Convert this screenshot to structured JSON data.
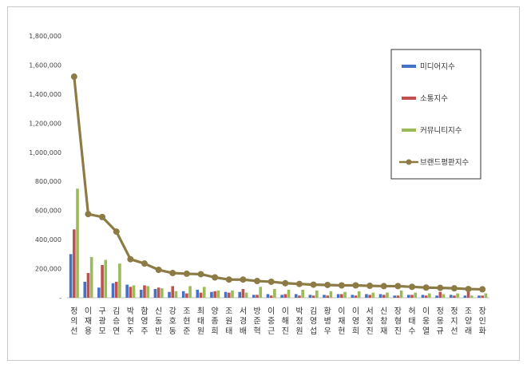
{
  "chart_data": {
    "type": "bar",
    "title": "",
    "xlabel": "",
    "ylabel": "",
    "ylim": [
      0,
      1800000
    ],
    "yticks": [
      0,
      200000,
      400000,
      600000,
      800000,
      1000000,
      1200000,
      1400000,
      1600000,
      1800000
    ],
    "ytick_labels": [
      "-",
      "200,000",
      "400,000",
      "600,000",
      "800,000",
      "1,000,000",
      "1,200,000",
      "1,400,000",
      "1,600,000",
      "1,800,000"
    ],
    "grid": false,
    "legend_position": "right",
    "categories": [
      "정의선",
      "이재용",
      "구광모",
      "김승연",
      "박현주",
      "함영주",
      "신동빈",
      "강호동",
      "조현준",
      "최태원",
      "양종희",
      "조원태",
      "서경배",
      "방준혁",
      "이중근",
      "이해진",
      "박정원",
      "김영섭",
      "황병우",
      "이재현",
      "이영희",
      "서정진",
      "신창재",
      "장형진",
      "허태수",
      "이웅열",
      "정몽규",
      "정지선",
      "조양래",
      "장인화"
    ],
    "series": [
      {
        "name": "미디어지수",
        "color": "#4472c4",
        "values": [
          300000,
          110000,
          70000,
          100000,
          90000,
          55000,
          60000,
          40000,
          45000,
          55000,
          40000,
          40000,
          40000,
          20000,
          25000,
          20000,
          25000,
          20000,
          20000,
          25000,
          20000,
          25000,
          25000,
          15000,
          20000,
          20000,
          15000,
          20000,
          15000,
          15000
        ]
      },
      {
        "name": "소통지수",
        "color": "#c0504d",
        "values": [
          470000,
          170000,
          225000,
          110000,
          75000,
          85000,
          70000,
          80000,
          30000,
          35000,
          45000,
          35000,
          60000,
          20000,
          15000,
          25000,
          15000,
          15000,
          15000,
          25000,
          15000,
          20000,
          20000,
          15000,
          20000,
          15000,
          40000,
          15000,
          40000,
          15000
        ]
      },
      {
        "name": "커뮤니티지수",
        "color": "#9bbb59",
        "values": [
          750000,
          280000,
          260000,
          235000,
          85000,
          80000,
          65000,
          45000,
          80000,
          75000,
          50000,
          50000,
          35000,
          75000,
          60000,
          55000,
          55000,
          50000,
          45000,
          40000,
          45000,
          35000,
          35000,
          50000,
          35000,
          30000,
          25000,
          30000,
          15000,
          30000
        ]
      },
      {
        "name": "브랜드평판지수",
        "color": "#8c7b45",
        "type": "line",
        "values": [
          1520000,
          575000,
          555000,
          455000,
          265000,
          235000,
          192000,
          170000,
          165000,
          162000,
          140000,
          125000,
          125000,
          115000,
          110000,
          100000,
          95000,
          90000,
          88000,
          85000,
          85000,
          82000,
          80000,
          80000,
          75000,
          70000,
          68000,
          65000,
          60000,
          58000
        ]
      }
    ]
  }
}
